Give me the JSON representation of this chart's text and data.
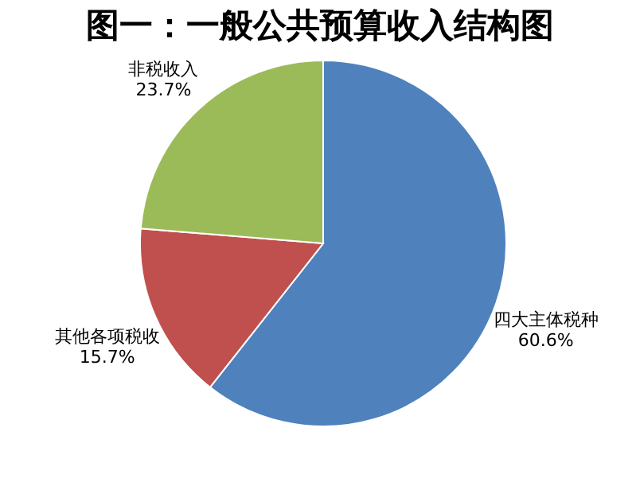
{
  "chart_data": {
    "type": "pie",
    "title": "图一：一般公共预算收入结构图",
    "categories": [
      "四大主体税种",
      "其他各项税收",
      "非税收入"
    ],
    "values": [
      60.6,
      15.7,
      23.7
    ],
    "colors": [
      "#4f81bd",
      "#c0504d",
      "#9bbb59"
    ],
    "value_labels": [
      "60.6%",
      "15.7%",
      "23.7%"
    ],
    "legend": false
  }
}
